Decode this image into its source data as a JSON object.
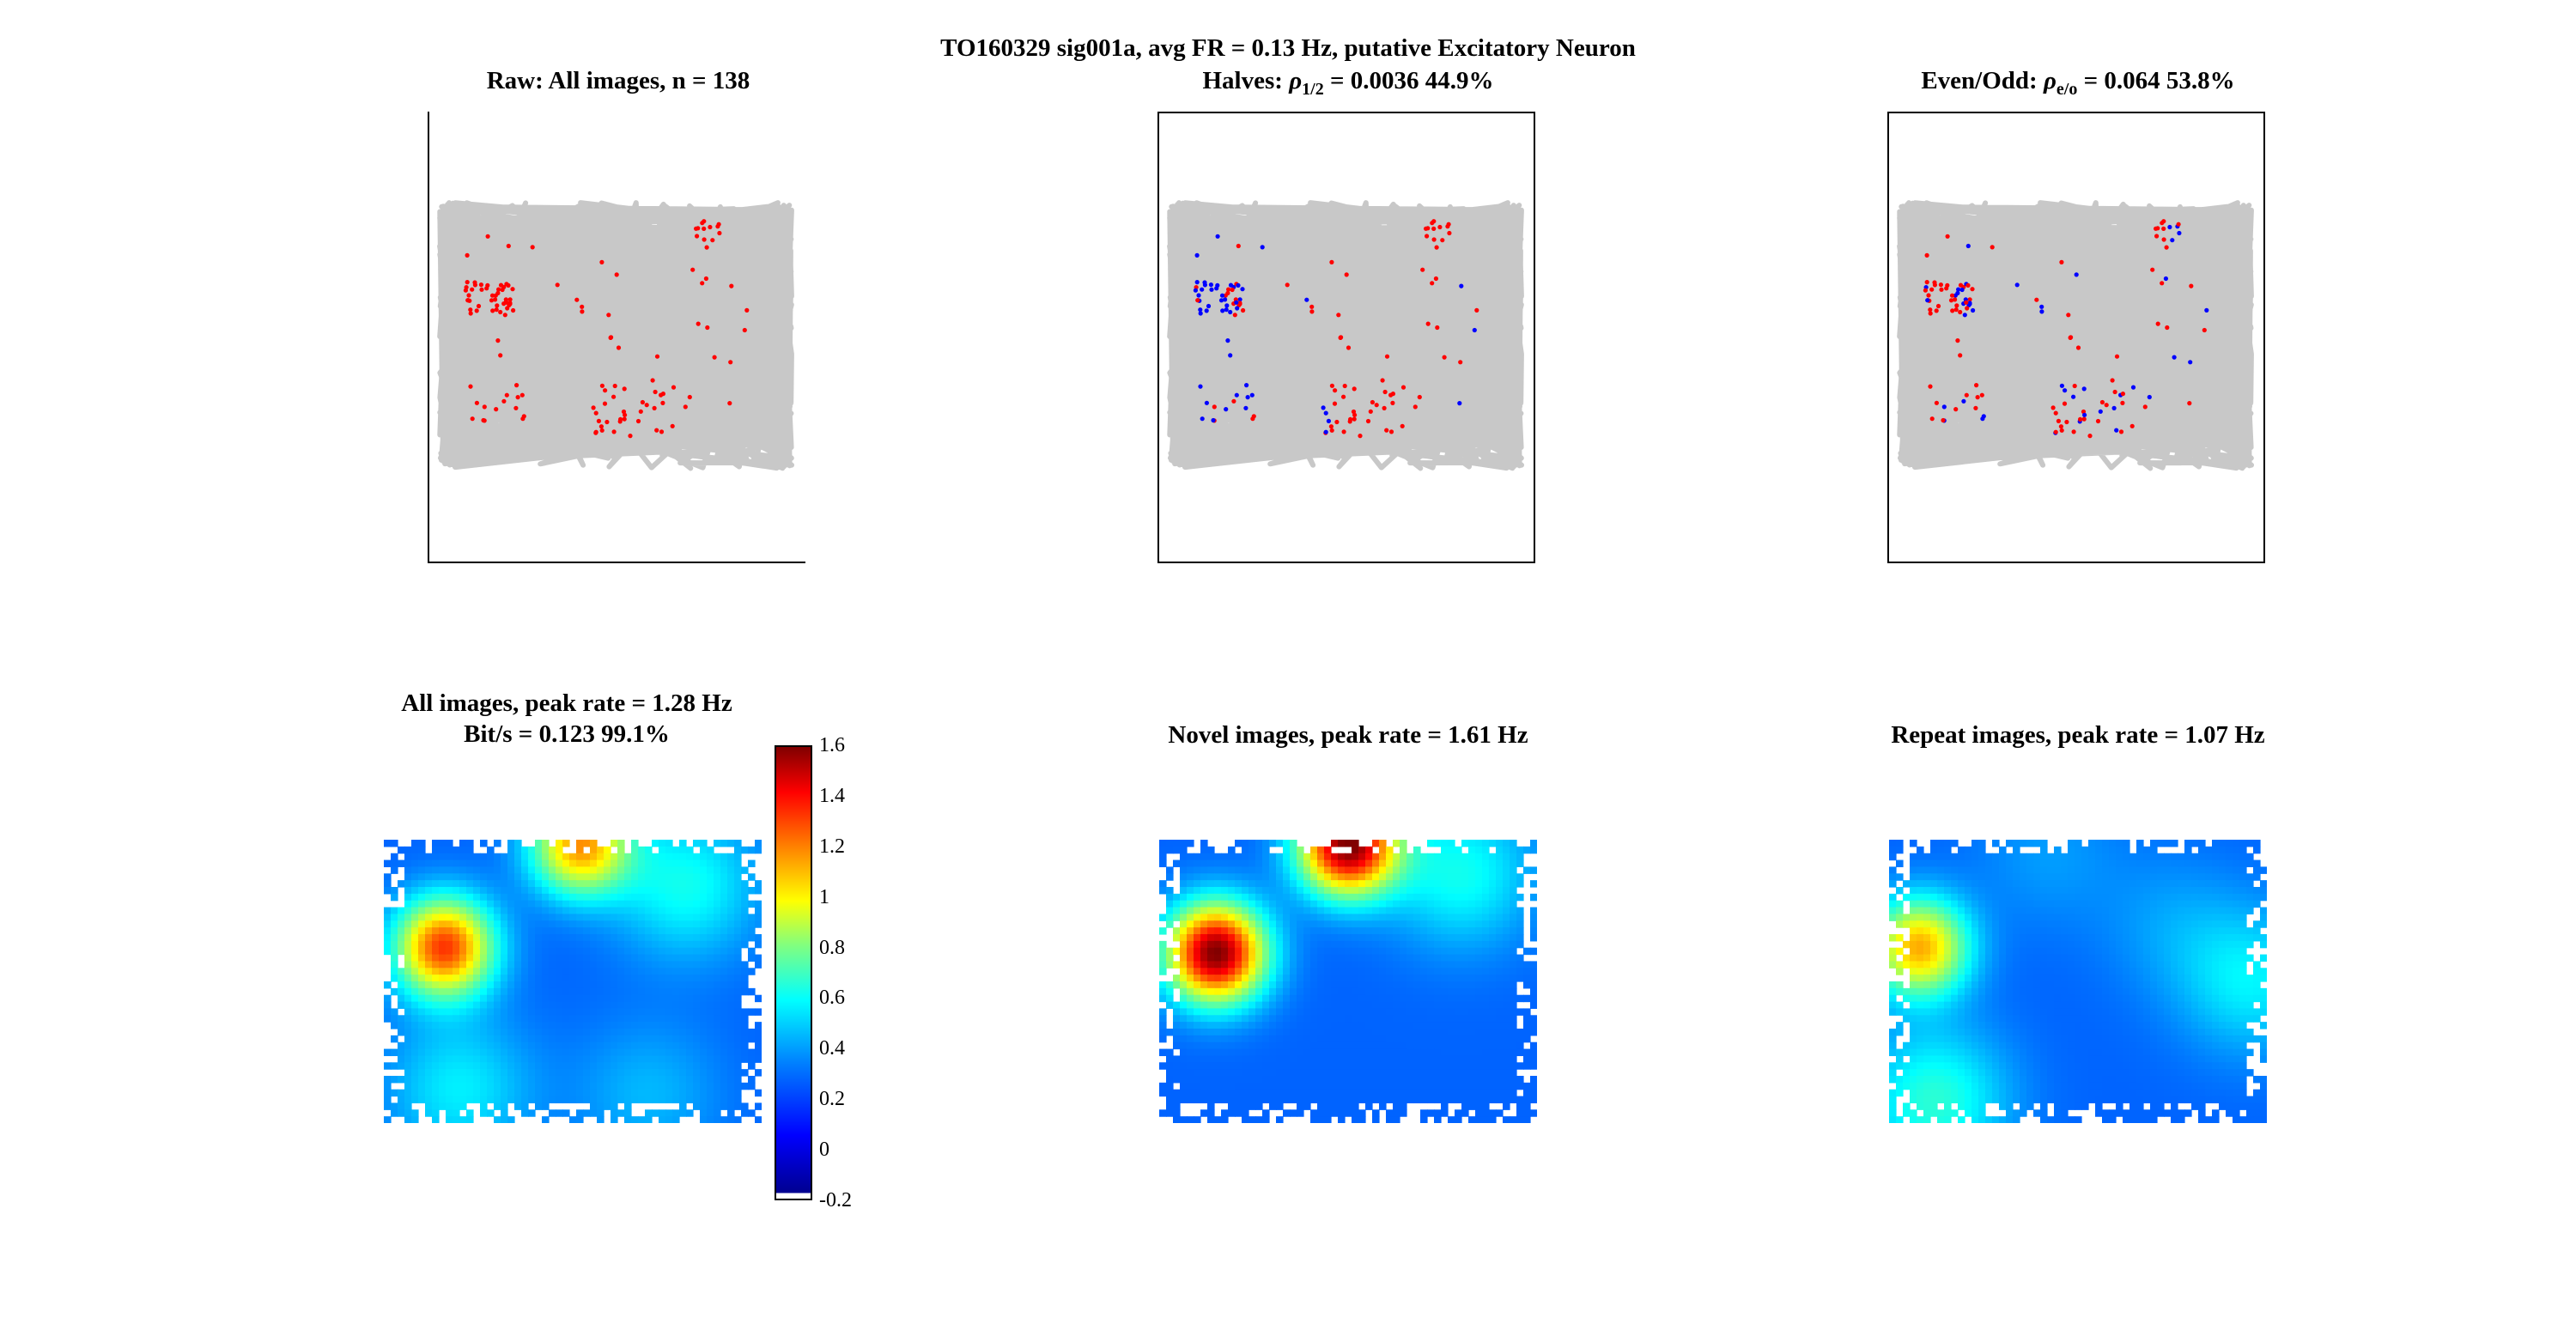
{
  "suptitle": "TO160329  sig001a, avg FR = 0.13 Hz, putative Excitatory Neuron",
  "panels": {
    "raw": {
      "title": "Raw: All images, n = 138"
    },
    "halves": {
      "title_pre": "Halves: ",
      "rho": "ρ",
      "sub": "1/2",
      "title_post": " = 0.0036 44.9%"
    },
    "evenodd": {
      "title_pre": "Even/Odd: ",
      "rho": "ρ",
      "sub": "e/o",
      "title_post": " = 0.064 53.8%"
    },
    "all": {
      "title": "All images, peak rate = 1.28 Hz",
      "subtitle": "Bit/s = 0.123 99.1%"
    },
    "novel": {
      "title": "Novel images, peak rate = 1.61 Hz"
    },
    "repeat": {
      "title": "Repeat images, peak rate = 1.07 Hz"
    }
  },
  "colorbar": {
    "ticks": [
      "1.6",
      "1.4",
      "1.2",
      "1",
      "0.8",
      "0.6",
      "0.4",
      "0.2",
      "0",
      "-0.2"
    ],
    "min": -0.2,
    "max": 1.6
  },
  "colors": {
    "trace": "#c8c8c8",
    "spike_red": "#ff0000",
    "spike_blue": "#0000ff"
  },
  "chart_data": [
    {
      "type": "scatter",
      "name": "raw",
      "spikes_red": 138
    },
    {
      "type": "scatter",
      "name": "halves"
    },
    {
      "type": "scatter",
      "name": "evenodd"
    },
    {
      "type": "heatmap",
      "name": "all",
      "peak": 1.28,
      "hotspots": [
        {
          "x": 0.16,
          "y": 0.38,
          "v": 1.28
        },
        {
          "x": 0.52,
          "y": 0.02,
          "v": 1.1
        },
        {
          "x": 0.8,
          "y": 0.16,
          "v": 0.5
        },
        {
          "x": 0.2,
          "y": 0.88,
          "v": 0.45
        },
        {
          "x": 0.7,
          "y": 0.9,
          "v": 0.35
        }
      ]
    },
    {
      "type": "heatmap",
      "name": "novel",
      "peak": 1.61,
      "hotspots": [
        {
          "x": 0.15,
          "y": 0.4,
          "v": 1.6
        },
        {
          "x": 0.5,
          "y": 0.02,
          "v": 1.6
        },
        {
          "x": 0.8,
          "y": 0.12,
          "v": 0.5
        }
      ]
    },
    {
      "type": "heatmap",
      "name": "repeat",
      "peak": 1.07,
      "hotspots": [
        {
          "x": 0.08,
          "y": 0.38,
          "v": 1.07
        },
        {
          "x": 0.42,
          "y": 0.05,
          "v": 0.3
        },
        {
          "x": 0.75,
          "y": 0.3,
          "v": 0.3
        },
        {
          "x": 0.96,
          "y": 0.5,
          "v": 0.45
        },
        {
          "x": 0.12,
          "y": 0.92,
          "v": 0.55
        }
      ]
    }
  ]
}
